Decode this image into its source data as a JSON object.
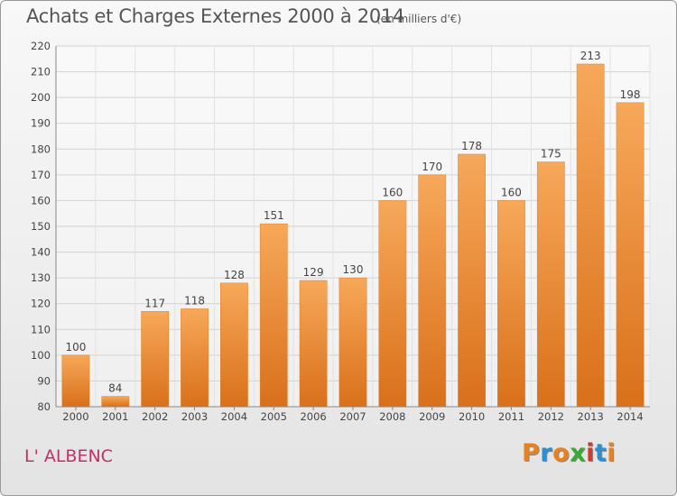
{
  "header": {
    "title": "Achats et Charges Externes 2000 à 2014",
    "unit": "(en milliers d'€)"
  },
  "footer": {
    "commune": "L' ALBENC",
    "logo_text": "Proxiti",
    "logo_colors": [
      "#e8821e",
      "#2e8fd0",
      "#e8821e",
      "#3aa935",
      "#d33a2f",
      "#2e8fd0",
      "#e8821e"
    ]
  },
  "chart_data": {
    "type": "bar",
    "categories": [
      "2000",
      "2001",
      "2002",
      "2003",
      "2004",
      "2005",
      "2006",
      "2007",
      "2008",
      "2009",
      "2010",
      "2011",
      "2012",
      "2013",
      "2014"
    ],
    "values": [
      100,
      84,
      117,
      118,
      128,
      151,
      129,
      130,
      160,
      170,
      178,
      160,
      175,
      213,
      198
    ],
    "title": "Achats et Charges Externes 2000 à 2014",
    "ylim": [
      80,
      220
    ],
    "yticks": [
      80,
      90,
      100,
      110,
      120,
      130,
      140,
      150,
      160,
      170,
      180,
      190,
      200,
      210,
      220
    ],
    "grid": true,
    "bar_color": "#f08c2a"
  }
}
